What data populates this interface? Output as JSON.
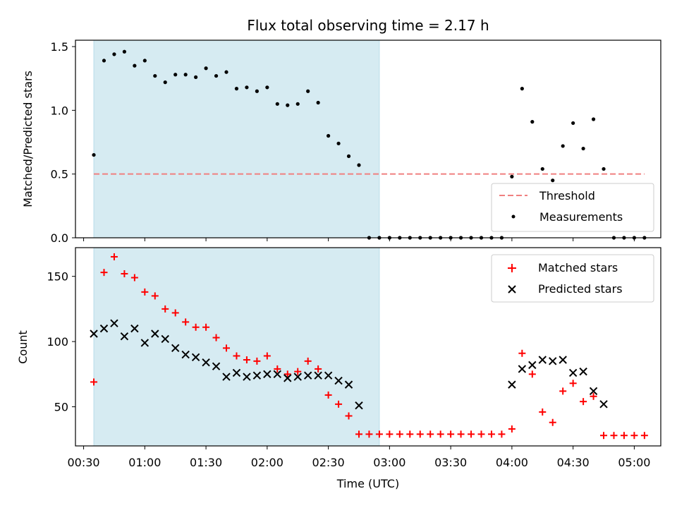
{
  "chart_data": [
    {
      "type": "scatter",
      "title": "Flux total observing time = 2.17 h",
      "ylabel": "Matched/Predicted stars",
      "xlabel": "",
      "xlim": [
        "00:26",
        "05:13"
      ],
      "ylim": [
        0,
        1.55
      ],
      "yticks": [
        "0.0",
        "0.5",
        "1.0",
        "1.5"
      ],
      "shaded_range": [
        "00:35",
        "02:55"
      ],
      "shaded_color": "#add8e6",
      "legend": {
        "position": "lower-right",
        "entries": [
          "Threshold",
          "Measurements"
        ]
      },
      "threshold": {
        "name": "Threshold",
        "value": 0.5,
        "x_range": [
          "00:35",
          "05:05"
        ],
        "color": "#f08080"
      },
      "measurements": {
        "name": "Measurements",
        "color": "#000000",
        "points": [
          [
            "00:35",
            0.65
          ],
          [
            "00:40",
            1.39
          ],
          [
            "00:45",
            1.44
          ],
          [
            "00:50",
            1.46
          ],
          [
            "00:55",
            1.35
          ],
          [
            "01:00",
            1.39
          ],
          [
            "01:05",
            1.27
          ],
          [
            "01:10",
            1.22
          ],
          [
            "01:15",
            1.28
          ],
          [
            "01:20",
            1.28
          ],
          [
            "01:25",
            1.26
          ],
          [
            "01:30",
            1.33
          ],
          [
            "01:35",
            1.27
          ],
          [
            "01:40",
            1.3
          ],
          [
            "01:45",
            1.17
          ],
          [
            "01:50",
            1.18
          ],
          [
            "01:55",
            1.15
          ],
          [
            "02:00",
            1.18
          ],
          [
            "02:05",
            1.05
          ],
          [
            "02:10",
            1.04
          ],
          [
            "02:15",
            1.05
          ],
          [
            "02:20",
            1.15
          ],
          [
            "02:25",
            1.06
          ],
          [
            "02:30",
            0.8
          ],
          [
            "02:35",
            0.74
          ],
          [
            "02:40",
            0.64
          ],
          [
            "02:45",
            0.57
          ],
          [
            "02:50",
            0.0
          ],
          [
            "02:55",
            0.0
          ],
          [
            "03:00",
            0.0
          ],
          [
            "03:05",
            0.0
          ],
          [
            "03:10",
            0.0
          ],
          [
            "03:15",
            0.0
          ],
          [
            "03:20",
            0.0
          ],
          [
            "03:25",
            0.0
          ],
          [
            "03:30",
            0.0
          ],
          [
            "03:35",
            0.0
          ],
          [
            "03:40",
            0.0
          ],
          [
            "03:45",
            0.0
          ],
          [
            "03:50",
            0.0
          ],
          [
            "03:55",
            0.0
          ],
          [
            "04:00",
            0.48
          ],
          [
            "04:05",
            1.17
          ],
          [
            "04:10",
            0.91
          ],
          [
            "04:15",
            0.54
          ],
          [
            "04:20",
            0.45
          ],
          [
            "04:25",
            0.72
          ],
          [
            "04:30",
            0.9
          ],
          [
            "04:35",
            0.7
          ],
          [
            "04:40",
            0.93
          ],
          [
            "04:45",
            0.54
          ],
          [
            "04:50",
            0.0
          ],
          [
            "04:55",
            0.0
          ],
          [
            "05:00",
            0.0
          ],
          [
            "05:05",
            0.0
          ]
        ]
      }
    },
    {
      "type": "scatter",
      "title": "",
      "ylabel": "Count",
      "xlabel": "Time (UTC)",
      "xlim": [
        "00:26",
        "05:13"
      ],
      "ylim": [
        20,
        172
      ],
      "yticks": [
        "50",
        "100",
        "150"
      ],
      "xticks": [
        "00:30",
        "01:00",
        "01:30",
        "02:00",
        "02:30",
        "03:00",
        "03:30",
        "04:00",
        "04:30",
        "05:00"
      ],
      "shaded_range": [
        "00:35",
        "02:55"
      ],
      "shaded_color": "#add8e6",
      "legend": {
        "position": "top-right",
        "entries": [
          "Matched stars",
          "Predicted stars"
        ]
      },
      "series": [
        {
          "name": "Matched stars",
          "marker": "+",
          "color": "#ff0000",
          "points": [
            [
              "00:35",
              69
            ],
            [
              "00:40",
              153
            ],
            [
              "00:45",
              165
            ],
            [
              "00:50",
              152
            ],
            [
              "00:55",
              149
            ],
            [
              "01:00",
              138
            ],
            [
              "01:05",
              135
            ],
            [
              "01:10",
              125
            ],
            [
              "01:15",
              122
            ],
            [
              "01:20",
              115
            ],
            [
              "01:25",
              111
            ],
            [
              "01:30",
              111
            ],
            [
              "01:35",
              103
            ],
            [
              "01:40",
              95
            ],
            [
              "01:45",
              89
            ],
            [
              "01:50",
              86
            ],
            [
              "01:55",
              85
            ],
            [
              "02:00",
              89
            ],
            [
              "02:05",
              79
            ],
            [
              "02:10",
              75
            ],
            [
              "02:15",
              77
            ],
            [
              "02:20",
              85
            ],
            [
              "02:25",
              79
            ],
            [
              "02:30",
              59
            ],
            [
              "02:35",
              52
            ],
            [
              "02:40",
              43
            ],
            [
              "02:45",
              29
            ],
            [
              "02:50",
              29
            ],
            [
              "02:55",
              29
            ],
            [
              "03:00",
              29
            ],
            [
              "03:05",
              29
            ],
            [
              "03:10",
              29
            ],
            [
              "03:15",
              29
            ],
            [
              "03:20",
              29
            ],
            [
              "03:25",
              29
            ],
            [
              "03:30",
              29
            ],
            [
              "03:35",
              29
            ],
            [
              "03:40",
              29
            ],
            [
              "03:45",
              29
            ],
            [
              "03:50",
              29
            ],
            [
              "03:55",
              29
            ],
            [
              "04:00",
              33
            ],
            [
              "04:05",
              91
            ],
            [
              "04:10",
              75
            ],
            [
              "04:15",
              46
            ],
            [
              "04:20",
              38
            ],
            [
              "04:25",
              62
            ],
            [
              "04:30",
              68
            ],
            [
              "04:35",
              54
            ],
            [
              "04:40",
              58
            ],
            [
              "04:45",
              28
            ],
            [
              "04:50",
              28
            ],
            [
              "04:55",
              28
            ],
            [
              "05:00",
              28
            ],
            [
              "05:05",
              28
            ]
          ]
        },
        {
          "name": "Predicted stars",
          "marker": "x",
          "color": "#000000",
          "points": [
            [
              "00:35",
              106
            ],
            [
              "00:40",
              110
            ],
            [
              "00:45",
              114
            ],
            [
              "00:50",
              104
            ],
            [
              "00:55",
              110
            ],
            [
              "01:00",
              99
            ],
            [
              "01:05",
              106
            ],
            [
              "01:10",
              102
            ],
            [
              "01:15",
              95
            ],
            [
              "01:20",
              90
            ],
            [
              "01:25",
              88
            ],
            [
              "01:30",
              84
            ],
            [
              "01:35",
              81
            ],
            [
              "01:40",
              73
            ],
            [
              "01:45",
              76
            ],
            [
              "01:50",
              73
            ],
            [
              "01:55",
              74
            ],
            [
              "02:00",
              75
            ],
            [
              "02:05",
              75
            ],
            [
              "02:10",
              72
            ],
            [
              "02:15",
              73
            ],
            [
              "02:20",
              74
            ],
            [
              "02:25",
              74
            ],
            [
              "02:30",
              74
            ],
            [
              "02:35",
              70
            ],
            [
              "02:40",
              67
            ],
            [
              "02:45",
              51
            ],
            [
              "04:00",
              67
            ],
            [
              "04:05",
              79
            ],
            [
              "04:10",
              82
            ],
            [
              "04:15",
              86
            ],
            [
              "04:20",
              85
            ],
            [
              "04:25",
              86
            ],
            [
              "04:30",
              76
            ],
            [
              "04:35",
              77
            ],
            [
              "04:40",
              62
            ],
            [
              "04:45",
              52
            ]
          ]
        }
      ]
    }
  ]
}
